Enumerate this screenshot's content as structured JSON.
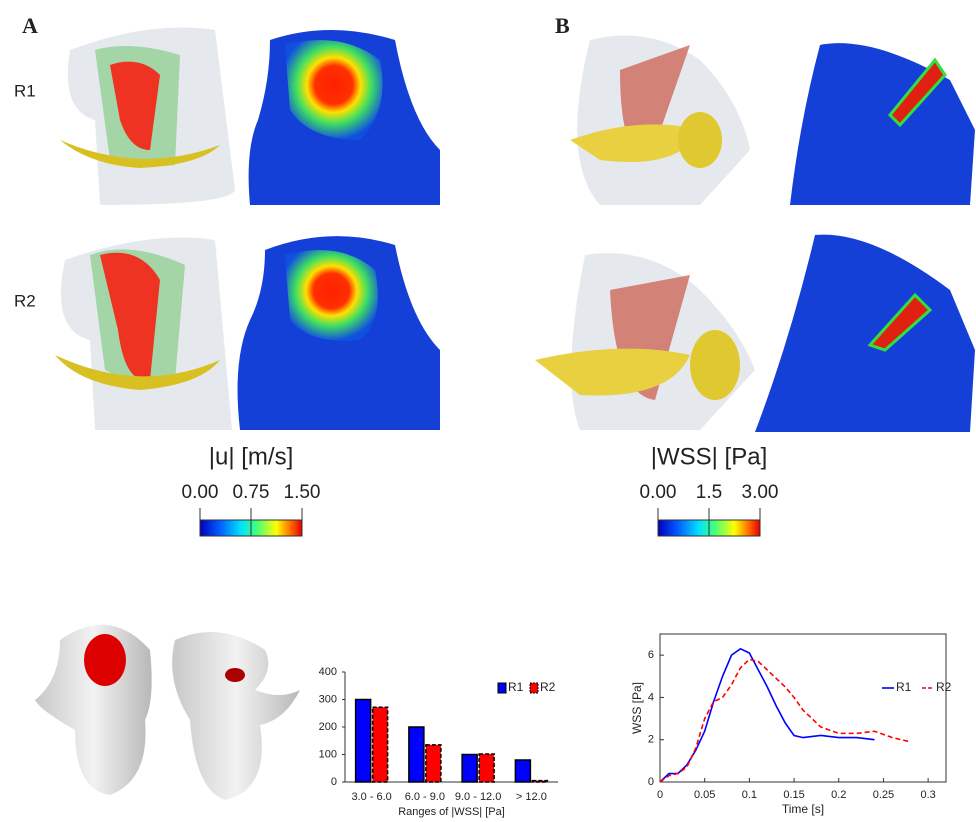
{
  "figure": {
    "panel_labels": [
      "A",
      "B"
    ],
    "row_labels": [
      "R1",
      "R2"
    ],
    "colorbars": [
      {
        "title": "|u| [m/s]",
        "ticks": [
          {
            "value": 0,
            "label": "0.00"
          },
          {
            "value": 0.75,
            "label": "0.75"
          },
          {
            "value": 1.5,
            "label": "1.50"
          }
        ],
        "lim": [
          0,
          1.5
        ]
      },
      {
        "title": "|WSS| [Pa]",
        "ticks": [
          {
            "value": 0,
            "label": "0.00"
          },
          1.5,
          {
            "value": 3,
            "label": "3.00"
          }
        ],
        "lim": [
          0,
          3
        ]
      }
    ]
  },
  "chart_data": [
    {
      "type": "bar",
      "xlabel": "Ranges of |WSS| [Pa]",
      "categories": [
        "3.0 - 6.0",
        "6.0 - 9.0",
        "9.0 - 12.0",
        "> 12.0"
      ],
      "series": [
        {
          "name": "R1",
          "color": "#0000ff",
          "values": [
            300,
            200,
            100,
            80
          ]
        },
        {
          "name": "R2",
          "color": "#ff0000",
          "values": [
            272,
            135,
            102,
            5
          ]
        }
      ],
      "ylim": [
        0,
        400
      ],
      "yticks": [
        0,
        100,
        200,
        300,
        400
      ],
      "legend": "top-right"
    },
    {
      "type": "line",
      "xlabel": "Time [s]",
      "ylabel": "WSS [Pa]",
      "series": [
        {
          "name": "R1",
          "color": "#0000ff",
          "x": [
            0,
            0.01,
            0.02,
            0.03,
            0.04,
            0.05,
            0.06,
            0.07,
            0.08,
            0.09,
            0.1,
            0.11,
            0.12,
            0.13,
            0.14,
            0.15,
            0.16,
            0.18,
            0.2,
            0.22,
            0.24
          ],
          "values": [
            0,
            0.4,
            0.4,
            0.8,
            1.5,
            2.4,
            3.8,
            5.0,
            6.0,
            6.3,
            6.1,
            5.3,
            4.5,
            3.6,
            2.8,
            2.2,
            2.1,
            2.2,
            2.1,
            2.1,
            2.0
          ]
        },
        {
          "name": "R2",
          "color": "#ff0000",
          "dashed": true,
          "x": [
            0,
            0.01,
            0.02,
            0.03,
            0.04,
            0.05,
            0.06,
            0.07,
            0.08,
            0.09,
            0.1,
            0.11,
            0.12,
            0.13,
            0.14,
            0.15,
            0.16,
            0.17,
            0.18,
            0.2,
            0.22,
            0.24,
            0.26,
            0.28
          ],
          "values": [
            0,
            0.3,
            0.4,
            0.7,
            1.6,
            3.0,
            3.8,
            4.0,
            4.6,
            5.4,
            5.8,
            5.7,
            5.3,
            4.9,
            4.5,
            4.0,
            3.4,
            3.0,
            2.6,
            2.3,
            2.3,
            2.4,
            2.1,
            1.9
          ]
        }
      ],
      "xlim": [
        0,
        0.32
      ],
      "xticks": [
        0,
        0.05,
        0.1,
        0.15,
        0.2,
        0.25,
        0.3
      ],
      "ylim": [
        0,
        7
      ],
      "yticks": [
        0,
        2,
        4,
        6
      ],
      "legend": "right"
    }
  ]
}
